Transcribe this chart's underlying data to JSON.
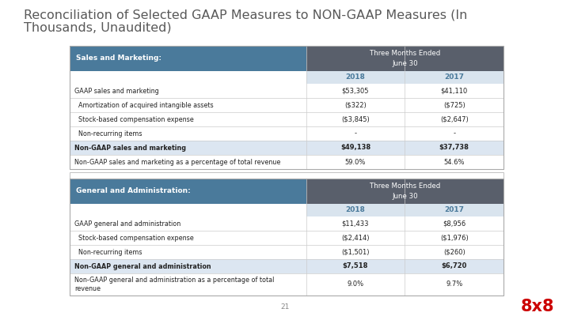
{
  "title_line1": "Reconciliation of Selected GAAP Measures to NON-GAAP Measures (In",
  "title_line2": "Thousands, Unaudited)",
  "title_fontsize": 11.5,
  "title_color": "#595959",
  "bg_color": "#ffffff",
  "dark_header_color": "#595f6b",
  "teal_header_color": "#4a7a9b",
  "light_blue_row_color": "#dce6f1",
  "year_row_bg": "#d9e4ee",
  "page_number": "21",
  "logo_text": "8x8",
  "logo_color": "#cc0000",
  "table1": {
    "header_label": "Sales and Marketing:",
    "years": [
      "2018",
      "2017"
    ],
    "rows": [
      {
        "label": "GAAP sales and marketing",
        "v2018": "$53,305",
        "v2017": "$41,110",
        "bold": false,
        "highlight": false,
        "tall": false
      },
      {
        "label": "  Amortization of acquired intangible assets",
        "v2018": "($322)",
        "v2017": "($725)",
        "bold": false,
        "highlight": false,
        "tall": false
      },
      {
        "label": "  Stock-based compensation expense",
        "v2018": "($3,845)",
        "v2017": "($2,647)",
        "bold": false,
        "highlight": false,
        "tall": false
      },
      {
        "label": "  Non-recurring items",
        "v2018": "-",
        "v2017": "-",
        "bold": false,
        "highlight": false,
        "tall": false
      },
      {
        "label": "Non-GAAP sales and marketing",
        "v2018": "$49,138",
        "v2017": "$37,738",
        "bold": true,
        "highlight": true,
        "tall": false
      },
      {
        "label": "Non-GAAP sales and marketing as a percentage of total revenue",
        "v2018": "59.0%",
        "v2017": "54.6%",
        "bold": false,
        "highlight": false,
        "tall": false
      }
    ]
  },
  "table2": {
    "header_label": "General and Administration:",
    "years": [
      "2018",
      "2017"
    ],
    "rows": [
      {
        "label": "GAAP general and administration",
        "v2018": "$11,433",
        "v2017": "$8,956",
        "bold": false,
        "highlight": false,
        "tall": false
      },
      {
        "label": "  Stock-based compensation expense",
        "v2018": "($2,414)",
        "v2017": "($1,976)",
        "bold": false,
        "highlight": false,
        "tall": false
      },
      {
        "label": "  Non-recurring items",
        "v2018": "($1,501)",
        "v2017": "($260)",
        "bold": false,
        "highlight": false,
        "tall": false
      },
      {
        "label": "Non-GAAP general and administration",
        "v2018": "$7,518",
        "v2017": "$6,720",
        "bold": true,
        "highlight": true,
        "tall": false
      },
      {
        "label": "Non-GAAP general and administration as a percentage of total\nrevenue",
        "v2018": "9.0%",
        "v2017": "9.7%",
        "bold": false,
        "highlight": false,
        "tall": true
      }
    ]
  }
}
